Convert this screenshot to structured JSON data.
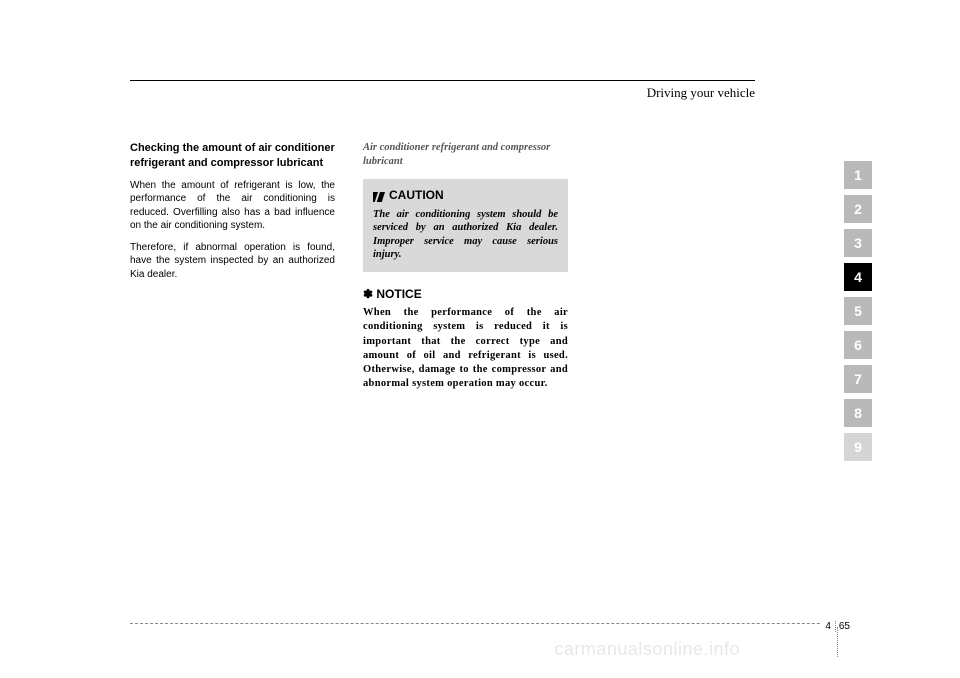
{
  "header": {
    "title": "Driving your vehicle"
  },
  "col1": {
    "subhead": "Checking the amount of air conditioner refrigerant and compressor lubricant",
    "p1": "When the amount of refrigerant is low, the performance of the air conditioning is reduced. Overfilling also has a bad influence on the air conditioning system.",
    "p2": "Therefore, if abnormal operation is found, have the system inspected by an authorized Kia dealer."
  },
  "col2": {
    "italic_sub": "Air conditioner refrigerant and compressor lubricant",
    "caution_label": "CAUTION",
    "caution_body": "The air conditioning system should be serviced by an authorized Kia dealer. Improper service may cause serious injury.",
    "notice_label": "✽ NOTICE",
    "notice_body": "When the performance of the air conditioning system is reduced it is important that the correct type and amount of oil and refrigerant is used.  Otherwise, damage to the compressor and abnormal system operation  may occur."
  },
  "tabs": {
    "items": [
      "1",
      "2",
      "3",
      "4",
      "5",
      "6",
      "7",
      "8",
      "9"
    ],
    "active_index": 3,
    "inactive_bg": "#b9b9b9",
    "active_bg": "#000000",
    "faded_bg": "#d5d5d5"
  },
  "footer": {
    "section": "4",
    "page": "65"
  },
  "watermark": "carmanualsonline.info"
}
